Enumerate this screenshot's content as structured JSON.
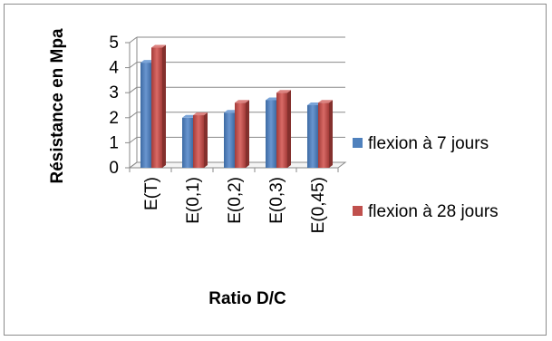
{
  "chart_data": {
    "type": "bar",
    "title": "",
    "xlabel": "Ratio D/C",
    "ylabel": "Résistance en Mpa",
    "categories": [
      "E(T)",
      "E(0,1)",
      "E(0,2)",
      "E(0,3)",
      "E(0,45)"
    ],
    "yticks": [
      "0",
      "1",
      "2",
      "3",
      "4",
      "5"
    ],
    "ylim": [
      0,
      5
    ],
    "grid": true,
    "legend_position": "right",
    "series": [
      {
        "name": "flexion à 7 jours",
        "values": [
          4.2,
          2.0,
          2.2,
          2.7,
          2.5
        ],
        "color": "#4f81bd"
      },
      {
        "name": "flexion à 28 jours",
        "values": [
          4.8,
          2.1,
          2.6,
          3.0,
          2.6
        ],
        "color": "#c0504d"
      }
    ]
  }
}
